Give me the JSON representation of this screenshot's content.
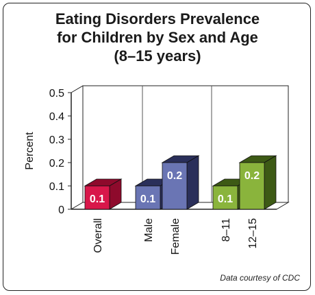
{
  "chart_data": {
    "type": "bar",
    "title_lines": [
      "Eating Disorders Prevalence",
      "for Children by Sex and Age",
      "(8–15 years)"
    ],
    "ylabel": "Percent",
    "ylim": [
      0,
      0.5
    ],
    "yticks": [
      "0",
      "0.1",
      "0.2",
      "0.3",
      "0.4",
      "0.5"
    ],
    "groups": [
      {
        "bars": [
          {
            "category": "Overall",
            "value": 0.1,
            "label": "0.1",
            "color": "#d8174a",
            "dark": "#8e0a2c"
          }
        ]
      },
      {
        "bars": [
          {
            "category": "Male",
            "value": 0.1,
            "label": "0.1",
            "color": "#6a75b4",
            "dark": "#2a2f5a"
          },
          {
            "category": "Female",
            "value": 0.2,
            "label": "0.2",
            "color": "#6a75b4",
            "dark": "#2a2f5a"
          }
        ]
      },
      {
        "bars": [
          {
            "category": "8–11",
            "value": 0.1,
            "label": "0.1",
            "color": "#8ab43c",
            "dark": "#3d5a15"
          },
          {
            "category": "12–15",
            "value": 0.2,
            "label": "0.2",
            "color": "#8ab43c",
            "dark": "#3d5a15"
          }
        ]
      }
    ],
    "credit": "Data courtesy of CDC"
  }
}
